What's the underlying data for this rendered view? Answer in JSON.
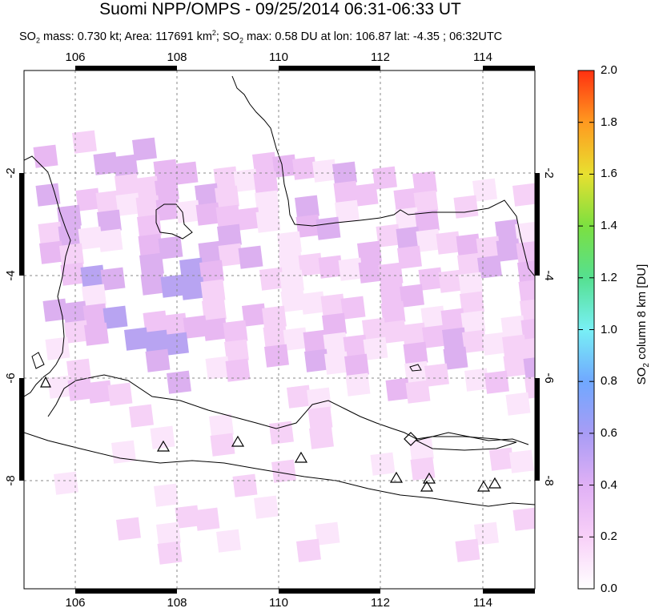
{
  "title": "Suomi NPP/OMPS - 09/25/2014 06:31-06:33 UT",
  "subtitle": {
    "so2_mass_label": "SO",
    "mass_text": " mass: 0.730 kt; Area: 117691 km",
    "max_text": "; SO",
    "max_rest": " max: 0.58 DU at lon: 106.87 lat: -4.35 ; 06:32UTC",
    "sub2": "2",
    "sup2": "2"
  },
  "map": {
    "lon_ticks": [
      "106",
      "108",
      "110",
      "112",
      "114"
    ],
    "lat_ticks_left": [
      "-2",
      "-4",
      "-6",
      "-8"
    ],
    "lat_ticks_right": [
      "-2",
      "-4",
      "-6",
      "-8"
    ],
    "volcano_icon": "triangle-icon"
  },
  "colorbar": {
    "ticks": [
      "2.0",
      "1.8",
      "1.6",
      "1.4",
      "1.2",
      "1.0",
      "0.8",
      "0.6",
      "0.4",
      "0.2",
      "0.0"
    ],
    "title_main": "SO",
    "title_sub": "2",
    "title_rest": " column 8 km [DU]",
    "colors": [
      "#ffffff",
      "#f5c8f5",
      "#b59cf0",
      "#6fa8ff",
      "#7ef7f7",
      "#55e08a",
      "#8ee43a",
      "#f0e030",
      "#ffa020",
      "#ff4010"
    ]
  }
}
